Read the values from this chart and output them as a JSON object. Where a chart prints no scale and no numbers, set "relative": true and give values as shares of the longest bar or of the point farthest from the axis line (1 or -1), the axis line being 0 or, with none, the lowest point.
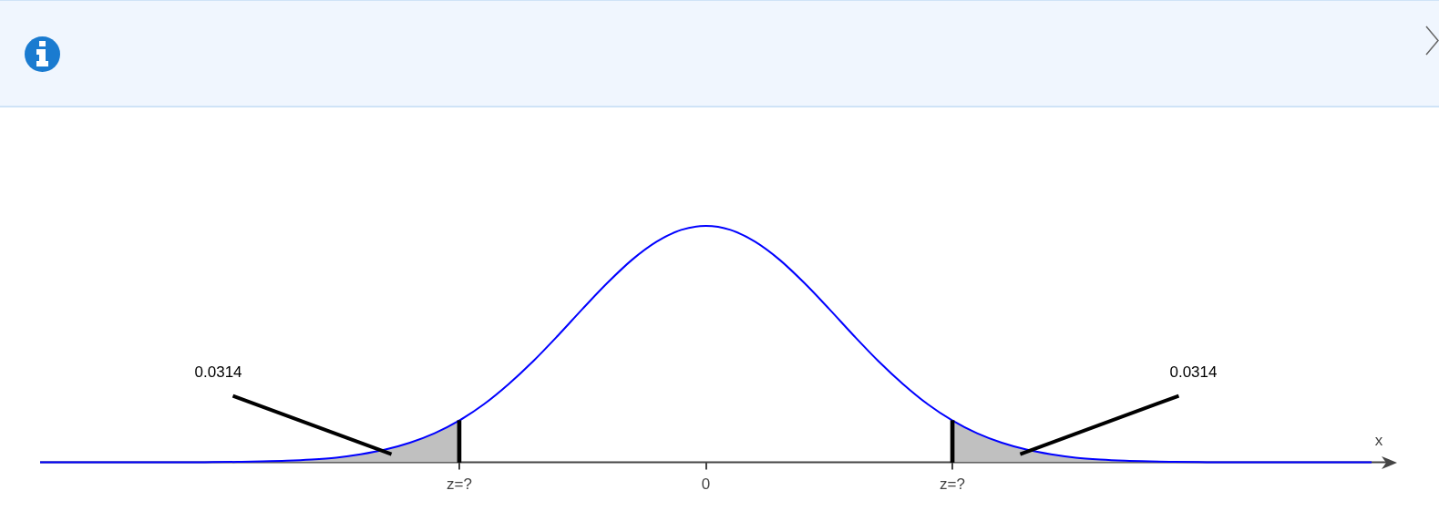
{
  "chart_data": {
    "type": "line",
    "relative": true,
    "xlabel": "x",
    "categories": [
      null,
      null,
      null,
      null,
      null,
      null,
      null,
      null,
      null,
      null,
      null,
      null,
      null,
      null,
      null,
      null,
      null,
      "z=?",
      null,
      null,
      null,
      null,
      null,
      null,
      null,
      null,
      null,
      "0",
      null,
      null,
      null,
      null,
      null,
      null,
      null,
      null,
      null,
      "z=?",
      null,
      null,
      null,
      null,
      null,
      null,
      null,
      null,
      null,
      null,
      null,
      null,
      null,
      null,
      null,
      null,
      null
    ],
    "series": [
      {
        "color": "#0000ff",
        "values": [
          0,
          0,
          0,
          0,
          0,
          0,
          0,
          0.001,
          0.002,
          0.004,
          0.007,
          0.012,
          0.02,
          0.034,
          0.054,
          0.083,
          0.123,
          0.177,
          0.246,
          0.331,
          0.428,
          0.536,
          0.649,
          0.758,
          0.856,
          0.933,
          0.983,
          1,
          0.983,
          0.933,
          0.856,
          0.758,
          0.649,
          0.536,
          0.428,
          0.331,
          0.246,
          0.177,
          0.123,
          0.083,
          0.054,
          0.034,
          0.02,
          0.012,
          0.007,
          0.004,
          0.002,
          0.001,
          0,
          0,
          0,
          0,
          0,
          0,
          0
        ]
      },
      {
        "type": "area",
        "color": "#c0c0c0",
        "values": [
          0,
          0,
          0,
          0,
          0,
          0,
          0,
          0.001,
          0.002,
          0.004,
          0.007,
          0.012,
          0.02,
          0.034,
          0.054,
          0.083,
          0.123,
          0.177,
          null,
          null,
          null,
          null,
          null,
          null,
          null,
          null,
          null,
          null,
          null,
          null,
          null,
          null,
          null,
          null,
          null,
          null,
          null,
          null,
          null,
          null,
          null,
          null,
          null,
          null,
          null,
          null,
          null,
          null,
          null,
          null,
          null,
          null,
          null,
          null,
          null
        ]
      },
      {
        "type": "area",
        "color": "#c0c0c0",
        "values": [
          null,
          null,
          null,
          null,
          null,
          null,
          null,
          null,
          null,
          null,
          null,
          null,
          null,
          null,
          null,
          null,
          null,
          null,
          null,
          null,
          null,
          null,
          null,
          null,
          null,
          null,
          null,
          null,
          null,
          null,
          null,
          null,
          null,
          null,
          null,
          null,
          null,
          0.177,
          0.123,
          0.083,
          0.054,
          0.034,
          0.02,
          0.012,
          0.007,
          0.004,
          0.002,
          0.001,
          0,
          0,
          0,
          0,
          0,
          0,
          0
        ]
      },
      {
        "type": "bar",
        "color": "#000000",
        "values": [
          null,
          null,
          null,
          null,
          null,
          null,
          null,
          null,
          null,
          null,
          null,
          null,
          null,
          null,
          null,
          null,
          null,
          0.177,
          null,
          null,
          null,
          null,
          null,
          null,
          null,
          null,
          null,
          null,
          null,
          null,
          null,
          null,
          null,
          null,
          null,
          null,
          null,
          0.177,
          null,
          null,
          null,
          null,
          null,
          null,
          null,
          null,
          null,
          null,
          null,
          null,
          null,
          null,
          null,
          null,
          null
        ]
      }
    ],
    "annotations": [
      "0.0314",
      "0.0314"
    ]
  }
}
